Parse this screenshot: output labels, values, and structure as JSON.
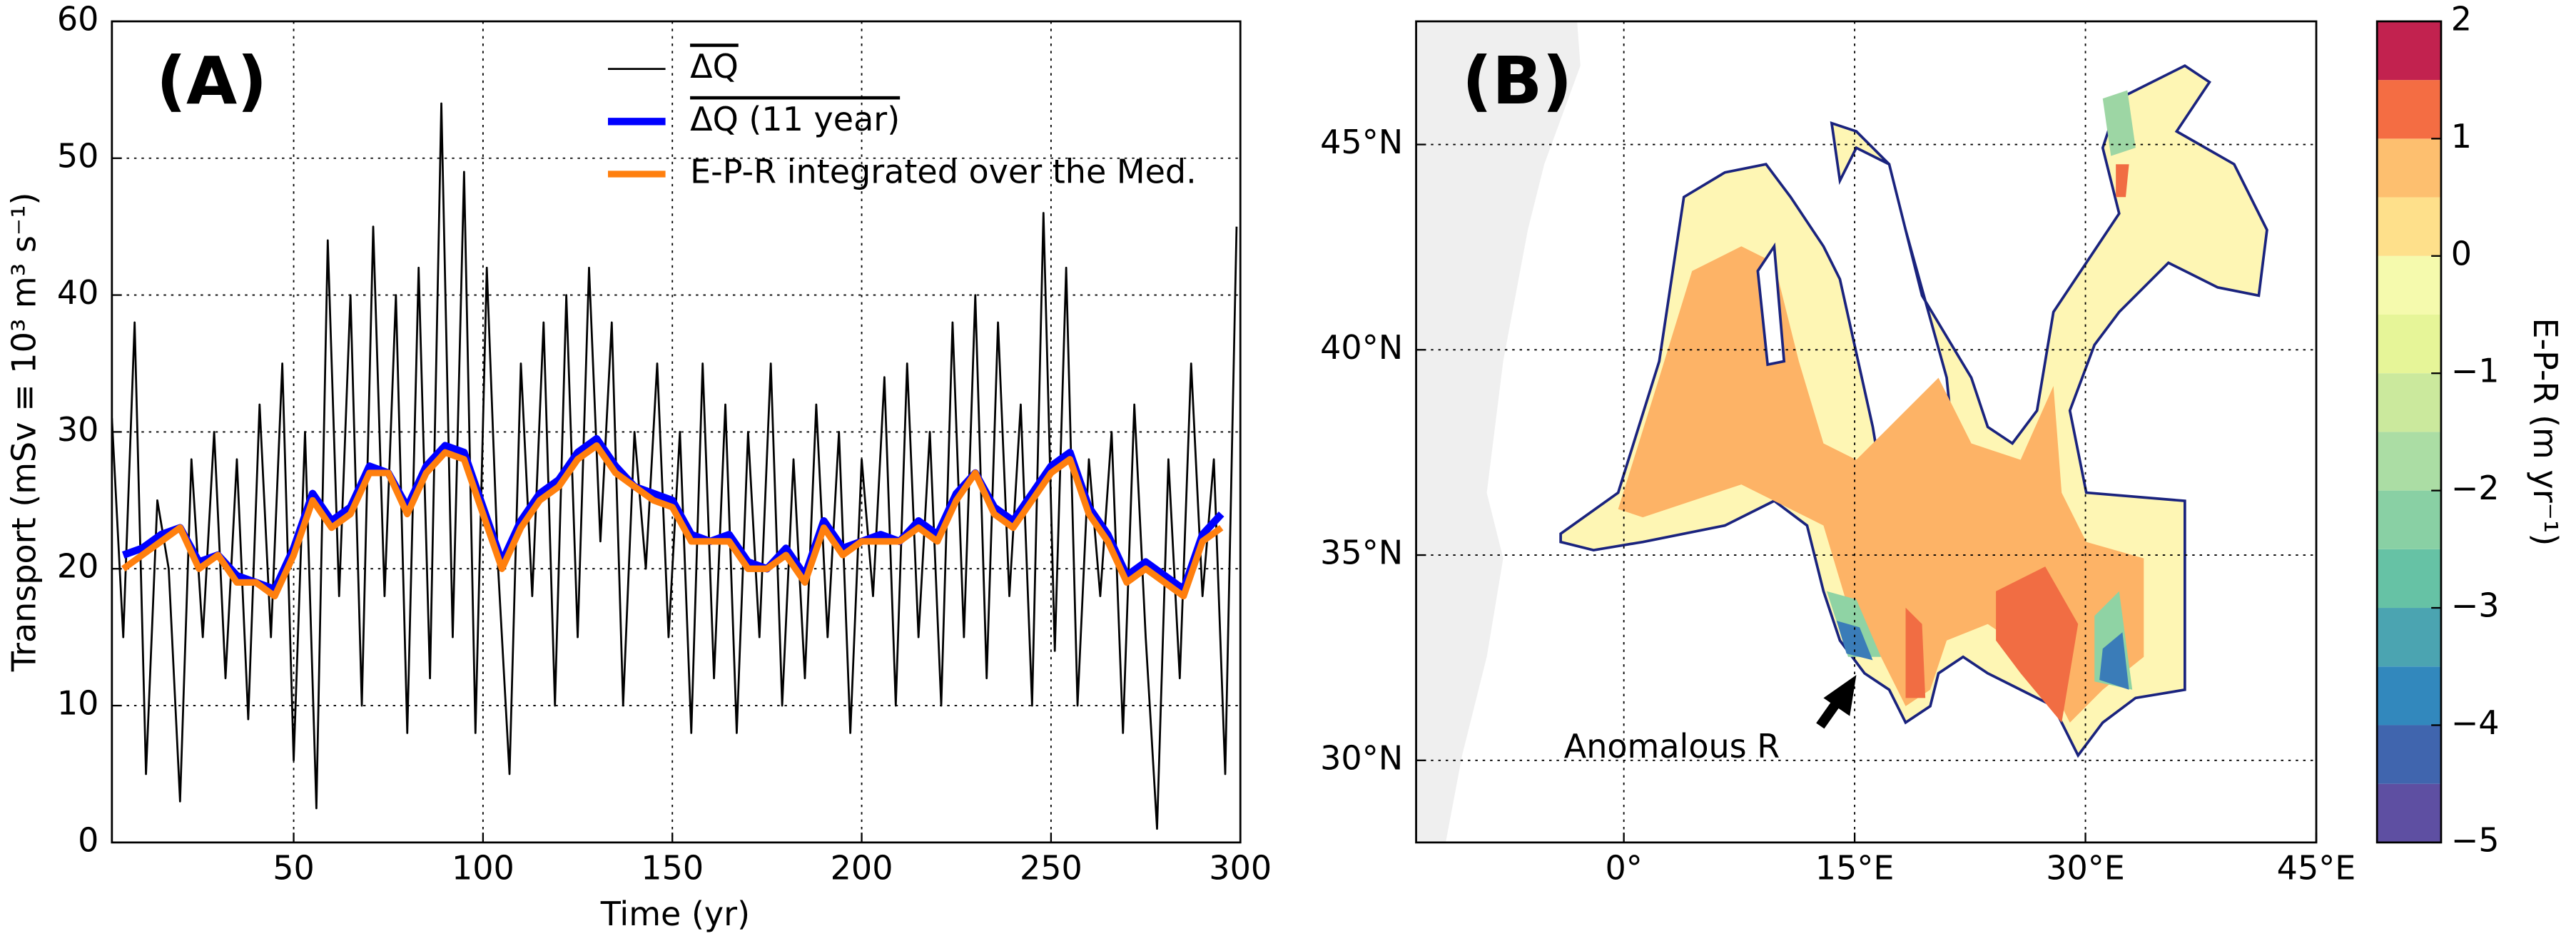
{
  "chart_data": [
    {
      "type": "line",
      "annotation": "(A)",
      "xlabel": "Time (yr)",
      "ylabel": "Transport (mSv ≡ 10³ m³ s⁻¹)",
      "xlim": [
        2,
        300
      ],
      "ylim": [
        0,
        60
      ],
      "xticks": [
        50,
        100,
        150,
        200,
        250,
        300
      ],
      "yticks": [
        0,
        10,
        20,
        30,
        40,
        50,
        60
      ],
      "grid": true,
      "legend": "upper center",
      "series": [
        {
          "name": "ΔQ",
          "color": "#000000",
          "x": [
            2,
            5,
            8,
            11,
            14,
            17,
            20,
            23,
            26,
            29,
            32,
            35,
            38,
            41,
            44,
            47,
            50,
            53,
            56,
            59,
            62,
            65,
            68,
            71,
            74,
            77,
            80,
            83,
            86,
            89,
            92,
            95,
            98,
            101,
            104,
            107,
            110,
            113,
            116,
            119,
            122,
            125,
            128,
            131,
            134,
            137,
            140,
            143,
            146,
            149,
            152,
            155,
            158,
            161,
            164,
            167,
            170,
            173,
            176,
            179,
            182,
            185,
            188,
            191,
            194,
            197,
            200,
            203,
            206,
            209,
            212,
            215,
            218,
            221,
            224,
            227,
            230,
            233,
            236,
            239,
            242,
            245,
            248,
            251,
            254,
            257,
            260,
            263,
            266,
            269,
            272,
            275,
            278,
            281,
            284,
            287,
            290,
            293,
            296,
            299
          ],
          "values": [
            31,
            15,
            38,
            5,
            25,
            20,
            3,
            28,
            15,
            30,
            12,
            28,
            9,
            32,
            15,
            35,
            6,
            30,
            2.5,
            44,
            18,
            40,
            10,
            45,
            18,
            40,
            8,
            42,
            12,
            54,
            15,
            49,
            8,
            42,
            20,
            5,
            35,
            18,
            38,
            10,
            40,
            15,
            42,
            22,
            38,
            10,
            30,
            20,
            35,
            15,
            30,
            8,
            35,
            12,
            32,
            8,
            30,
            15,
            35,
            10,
            28,
            12,
            32,
            15,
            30,
            8,
            28,
            18,
            34,
            10,
            35,
            15,
            30,
            10,
            38,
            15,
            40,
            12,
            38,
            18,
            32,
            10,
            46,
            14,
            42,
            10,
            28,
            18,
            30,
            8,
            32,
            15,
            1,
            28,
            12,
            35,
            18,
            28,
            5,
            45
          ]
        },
        {
          "name": "ΔQ (11 year)",
          "color": "#0000ff",
          "x": [
            5,
            10,
            15,
            20,
            25,
            30,
            35,
            40,
            45,
            50,
            55,
            60,
            65,
            70,
            75,
            80,
            85,
            90,
            95,
            100,
            105,
            110,
            115,
            120,
            125,
            130,
            135,
            140,
            145,
            150,
            155,
            160,
            165,
            170,
            175,
            180,
            185,
            190,
            195,
            200,
            205,
            210,
            215,
            220,
            225,
            230,
            235,
            240,
            245,
            250,
            255,
            260,
            265,
            270,
            275,
            280,
            285,
            290,
            295
          ],
          "values": [
            21,
            21.5,
            22.5,
            23,
            20.5,
            21,
            19.5,
            19,
            18.5,
            21.5,
            25.5,
            23.5,
            24.5,
            27.5,
            27,
            24.5,
            27.5,
            29,
            28.5,
            24.5,
            20.5,
            23.5,
            25.5,
            26.5,
            28.5,
            29.5,
            27.5,
            26,
            25.5,
            25,
            22.5,
            22,
            22.5,
            20.5,
            20,
            21.5,
            19.5,
            23.5,
            21.5,
            22,
            22.5,
            22,
            23.5,
            22.5,
            25.5,
            27,
            24.5,
            23.5,
            25.5,
            27.5,
            28.5,
            24.5,
            22.5,
            19.5,
            20.5,
            19.5,
            18.5,
            22.5,
            24
          ]
        },
        {
          "name": "E-P-R integrated over the Med.",
          "color": "#ff7f0e",
          "x": [
            5,
            10,
            15,
            20,
            25,
            30,
            35,
            40,
            45,
            50,
            55,
            60,
            65,
            70,
            75,
            80,
            85,
            90,
            95,
            100,
            105,
            110,
            115,
            120,
            125,
            130,
            135,
            140,
            145,
            150,
            155,
            160,
            165,
            170,
            175,
            180,
            185,
            190,
            195,
            200,
            205,
            210,
            215,
            220,
            225,
            230,
            235,
            240,
            245,
            250,
            255,
            260,
            265,
            270,
            275,
            280,
            285,
            290,
            295
          ],
          "values": [
            20,
            21,
            22,
            23,
            20,
            21,
            19,
            19,
            18,
            21,
            25,
            23,
            24,
            27,
            27,
            24,
            27,
            28.5,
            28,
            24,
            20,
            23,
            25,
            26,
            28,
            29,
            27,
            26,
            25,
            24.5,
            22,
            22,
            22,
            20,
            20,
            21,
            19,
            23,
            21,
            22,
            22,
            22,
            23,
            22,
            25,
            27,
            24,
            23,
            25,
            27,
            28,
            24,
            22,
            19,
            20,
            19,
            18,
            22,
            23
          ]
        }
      ]
    },
    {
      "type": "contour",
      "annotation": "(B)",
      "note": "Anomalous R",
      "colorbar_label": "E-P-R (m yr⁻¹)",
      "xlim": [
        -13.5,
        45
      ],
      "ylim": [
        28,
        48
      ],
      "grid": true,
      "xticks": [
        {
          "value": 0,
          "label": "0°"
        },
        {
          "value": 15,
          "label": "15°E"
        },
        {
          "value": 30,
          "label": "30°E"
        },
        {
          "value": 45,
          "label": "45°E"
        }
      ],
      "yticks": [
        {
          "value": 30,
          "label": "30°N"
        },
        {
          "value": 35,
          "label": "35°N"
        },
        {
          "value": 40,
          "label": "40°N"
        },
        {
          "value": 45,
          "label": "45°N"
        }
      ],
      "levels": [
        -5,
        -4.5,
        -4,
        -3.5,
        -3,
        -2.5,
        -2,
        -1.5,
        -1,
        -0.5,
        0,
        0.5,
        1,
        1.5,
        2
      ],
      "colors": [
        "#5e4fa2",
        "#4065ae",
        "#3288bd",
        "#4ba4b1",
        "#66c2a5",
        "#89d0a4",
        "#abdda4",
        "#cbe99d",
        "#e6f598",
        "#f5faad",
        "#fee08b",
        "#fdbf6f",
        "#f46d43",
        "#c2224f"
      ],
      "colorbar_ticks": [
        {
          "value": -5,
          "label": "−5"
        },
        {
          "value": -4,
          "label": "−4"
        },
        {
          "value": -3,
          "label": "−3"
        },
        {
          "value": -2,
          "label": "−2"
        },
        {
          "value": -1,
          "label": "−1"
        },
        0,
        1,
        2
      ]
    }
  ]
}
